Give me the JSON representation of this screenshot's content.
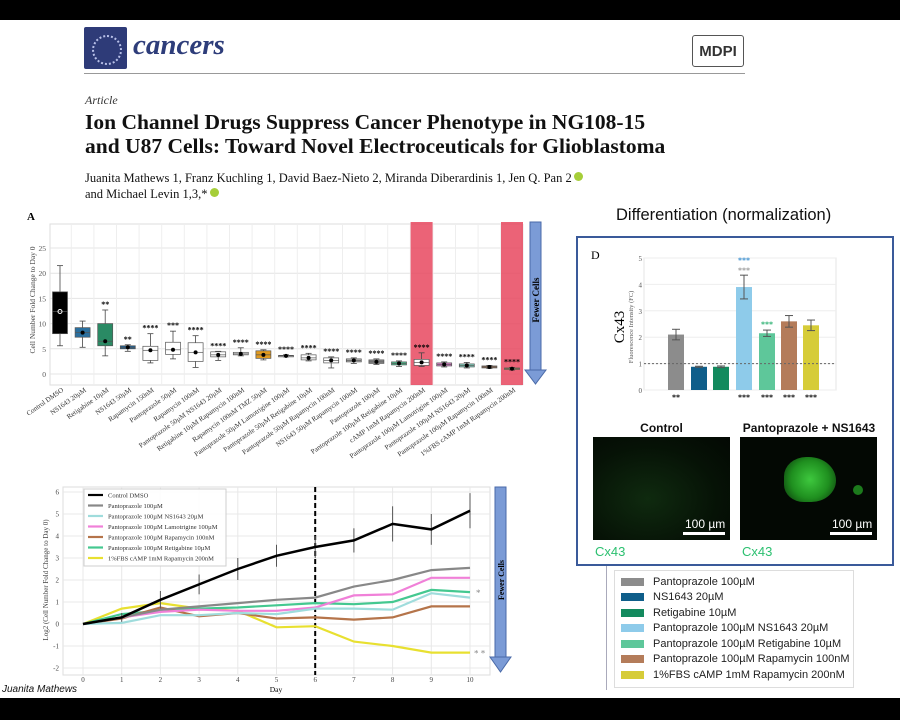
{
  "journal": {
    "name": "cancers",
    "publisher": "MDPI"
  },
  "article": {
    "type": "Article",
    "title_line1": "Ion Channel Drugs Suppress Cancer Phenotype in NG108-15",
    "title_line2": "and U87 Cells: Toward Novel Electroceuticals for Glioblastoma",
    "authors_line1": "Juanita Mathews 1, Franz Kuchling 1, David Baez-Nieto 2, Miranda Diberardinis 1, Jen Q. Pan 2",
    "authors_line2": "and Michael Levin 1,3,*"
  },
  "slide": {
    "differentiation_title": "Differentiation (normalization)",
    "credit": "Juanita Mathews"
  },
  "panel_d": {
    "label": "D",
    "image_left_title": "Control",
    "image_right_title": "Pantoprazole + NS1643",
    "scale_label": "100 µm",
    "stain_label": "Cx43"
  },
  "colors": {
    "highlight": "#e8485f",
    "arrow": "#7b9bd6",
    "panel_border": "#3a5a9a"
  },
  "chart_data": [
    {
      "type": "box",
      "panel": "A",
      "ylabel": "Cell Number Fold Change to Day 0",
      "ylim": [
        -2,
        28
      ],
      "yticks": [
        0,
        5,
        10,
        15,
        20,
        25
      ],
      "arrow_label": "Fewer Cells",
      "highlighted": [
        "cAMP 1mM Rapamycin 200nM",
        "1%FBS cAMP 1mM Rapamycin 200nM"
      ],
      "categories": [
        "Control DMSO",
        "NS1643 20µM",
        "Retigabine 10µM",
        "NS1643 50µM",
        "Rapamycin 150nM",
        "Pantoprazole 50µM",
        "Rapamycin 100nM",
        "Pantoprazole 50µM NS1643 20µM",
        "Retigabine 10µM Rapamycin 100nM",
        "Rapamycin 100nM TMZ 50µM",
        "Pantoprazole 50µM Lamotrigine 100µM",
        "Pantoprazole 50µM Retigabine 10µM",
        "Pantoprazole 50µM Rapamycin 100nM",
        "NS1643 50µM Rapamycin 100nM",
        "Pantoprazole 100µM",
        "Pantoprazole 100µM Retigabine 10µM",
        "cAMP 1mM Rapamycin 200nM",
        "Pantoprazole 100µM Lamotrigine 100µM",
        "Pantoprazole 100µM NS1643 20µM",
        "Pantoprazole 100µM Rapamycin 100nM",
        "1%FBS cAMP 1mM Rapamycin 200nM"
      ],
      "boxes": [
        {
          "q1": 8,
          "q3": 16.3,
          "median": 12.4,
          "lo": 5.6,
          "hi": 21.5,
          "color": "#000000",
          "sig": ""
        },
        {
          "q1": 7.3,
          "q3": 9.2,
          "median": 8.2,
          "lo": 5.3,
          "hi": 10.5,
          "color": "#2a6f9e",
          "sig": ""
        },
        {
          "q1": 5.6,
          "q3": 10,
          "median": 6.5,
          "lo": 3.6,
          "hi": 12.7,
          "color": "#2a8a64",
          "sig": "**"
        },
        {
          "q1": 5.0,
          "q3": 5.6,
          "median": 5.3,
          "lo": 4.5,
          "hi": 5.8,
          "color": "#1f5f8f",
          "sig": "**"
        },
        {
          "q1": 2.7,
          "q3": 5.5,
          "median": 4.7,
          "lo": 2.2,
          "hi": 8,
          "color": "#ffffff",
          "sig": "****"
        },
        {
          "q1": 3.9,
          "q3": 6.3,
          "median": 4.8,
          "lo": 3,
          "hi": 8.5,
          "color": "#ffffff",
          "sig": "***"
        },
        {
          "q1": 2.5,
          "q3": 6.2,
          "median": 4.3,
          "lo": 1.3,
          "hi": 7.6,
          "color": "#ffffff",
          "sig": "****"
        },
        {
          "q1": 3.4,
          "q3": 4.4,
          "median": 3.8,
          "lo": 2.7,
          "hi": 4.5,
          "color": "#ffffff",
          "sig": "****"
        },
        {
          "q1": 3.8,
          "q3": 4.3,
          "median": 4.0,
          "lo": 3.6,
          "hi": 5.2,
          "color": "#ffffff",
          "sig": "****"
        },
        {
          "q1": 3.1,
          "q3": 4.6,
          "median": 3.8,
          "lo": 2.8,
          "hi": 4.8,
          "color": "#e09a20",
          "sig": "****"
        },
        {
          "q1": 3.5,
          "q3": 3.7,
          "median": 3.6,
          "lo": 3.4,
          "hi": 3.8,
          "color": "#ffffff",
          "sig": "****"
        },
        {
          "q1": 2.8,
          "q3": 3.8,
          "median": 3.2,
          "lo": 2.6,
          "hi": 4.1,
          "color": "#ffffff",
          "sig": "****"
        },
        {
          "q1": 2.2,
          "q3": 3.2,
          "median": 2.7,
          "lo": 1.2,
          "hi": 3.4,
          "color": "#ffffff",
          "sig": "****"
        },
        {
          "q1": 2.4,
          "q3": 3.0,
          "median": 2.7,
          "lo": 2.1,
          "hi": 3.2,
          "color": "#bbbbbb",
          "sig": "****"
        },
        {
          "q1": 2.1,
          "q3": 2.8,
          "median": 2.4,
          "lo": 1.9,
          "hi": 3.0,
          "color": "#888888",
          "sig": "****"
        },
        {
          "q1": 1.8,
          "q3": 2.4,
          "median": 2.1,
          "lo": 1.5,
          "hi": 2.6,
          "color": "#4cc08f",
          "sig": "****"
        },
        {
          "q1": 1.7,
          "q3": 2.9,
          "median": 2.3,
          "lo": 1.5,
          "hi": 4.2,
          "color": "#ffffff",
          "sig": "****"
        },
        {
          "q1": 1.6,
          "q3": 2.2,
          "median": 1.9,
          "lo": 1.4,
          "hi": 2.4,
          "color": "#e080d0",
          "sig": "****"
        },
        {
          "q1": 1.4,
          "q3": 2.0,
          "median": 1.7,
          "lo": 1.2,
          "hi": 2.3,
          "color": "#7fd4c0",
          "sig": "****"
        },
        {
          "q1": 1.2,
          "q3": 1.6,
          "median": 1.4,
          "lo": 1.1,
          "hi": 1.7,
          "color": "#b07850",
          "sig": "****"
        },
        {
          "q1": 0.9,
          "q3": 1.2,
          "median": 1.05,
          "lo": 0.8,
          "hi": 1.3,
          "color": "#e0d030",
          "sig": "****"
        }
      ]
    },
    {
      "type": "line",
      "panel": "B",
      "xlabel": "Day",
      "ylabel": "Log2 (Cell Number Fold Change to Day 0)",
      "x": [
        0,
        1,
        2,
        3,
        4,
        5,
        6,
        7,
        8,
        9,
        10
      ],
      "ylim": [
        -2,
        6
      ],
      "yticks": [
        -2,
        -1,
        0,
        1,
        2,
        3,
        4,
        5,
        6
      ],
      "vline_day": 6,
      "arrow_label": "Fewer Cells",
      "legend": "top-left",
      "annotations": [
        {
          "text": "*",
          "series": "Pantoprazole 100µM Retigabine 10µM"
        },
        {
          "text": "* *",
          "series": "1%FBS cAMP 1mM Rapamycin 200nM"
        }
      ],
      "series": [
        {
          "name": "Control DMSO",
          "color": "#000000",
          "values": [
            0,
            0.3,
            1.1,
            1.8,
            2.5,
            3.1,
            3.5,
            3.8,
            4.55,
            4.3,
            5.15
          ],
          "err": [
            0,
            0.2,
            0.4,
            0.45,
            0.5,
            0.5,
            0.5,
            0.55,
            0.8,
            0.7,
            0.8
          ]
        },
        {
          "name": "Pantoprazole 100µM",
          "color": "#888888",
          "values": [
            0,
            0.3,
            0.65,
            0.8,
            0.95,
            1.1,
            1.2,
            1.7,
            2.0,
            2.45,
            2.55
          ]
        },
        {
          "name": "Pantoprazole 100µM NS1643 20µM",
          "color": "#9fdcdc",
          "values": [
            0,
            0.05,
            0.4,
            0.4,
            0.5,
            0.45,
            0.7,
            0.7,
            0.65,
            1.4,
            1.2
          ]
        },
        {
          "name": "Pantoprazole 100µM Lamotrigine 100µM",
          "color": "#f080d8",
          "values": [
            0,
            0.3,
            0.55,
            0.65,
            0.6,
            0.6,
            0.75,
            1.3,
            1.35,
            2.1,
            2.1
          ]
        },
        {
          "name": "Pantoprazole 100µM Rapamycin 100nM",
          "color": "#b5744a",
          "values": [
            0,
            0.25,
            0.75,
            0.35,
            0.5,
            0.25,
            0.3,
            0.2,
            0.3,
            0.8,
            0.8
          ]
        },
        {
          "name": "Pantoprazole 100µM Retigabine 10µM",
          "color": "#44c890",
          "values": [
            0,
            0.45,
            0.6,
            0.7,
            0.75,
            0.85,
            0.95,
            0.9,
            1.0,
            1.55,
            1.45
          ]
        },
        {
          "name": "1%FBS cAMP 1mM Rapamycin 200nM",
          "color": "#e8e030",
          "values": [
            0,
            0.7,
            0.95,
            0.7,
            0.6,
            -0.15,
            -0.1,
            -0.8,
            -1.0,
            -1.3,
            -1.3
          ]
        }
      ]
    },
    {
      "type": "bar",
      "panel": "D",
      "title": "Cx43",
      "ylabel": "Fluorescence Intensity (FC)",
      "ylim": [
        0,
        5
      ],
      "yticks": [
        0,
        1,
        2,
        3,
        4,
        5
      ],
      "reference_line": 1,
      "categories": [
        "Pantoprazole 100µM",
        "NS1643 20µM",
        "Retigabine 10µM",
        "Pantoprazole 100µM NS1643 20µM",
        "Pantoprazole 100µM Retigabine 10µM",
        "Pantoprazole 100µM Rapamycin 100nM",
        "1%FBS cAMP 1mM Rapamycin 200nM"
      ],
      "values": [
        2.1,
        0.88,
        0.88,
        3.9,
        2.15,
        2.6,
        2.45
      ],
      "errors": [
        0.2,
        0.02,
        0.03,
        0.45,
        0.12,
        0.22,
        0.2
      ],
      "colors": [
        "#8c8c8c",
        "#0f5e8a",
        "#138a5e",
        "#8ecbea",
        "#5ec79a",
        "#b47c5a",
        "#d6cc38"
      ],
      "sig_below": [
        "**",
        "",
        "",
        "***",
        "***",
        "***",
        "***"
      ],
      "sig_above": [
        "",
        "",
        "",
        "***",
        "***",
        "",
        ""
      ],
      "sig_above_colors": [
        "",
        "",
        "",
        "#3a8fd0",
        "#2ab070",
        "",
        ""
      ],
      "sig_above2": [
        "",
        "",
        "",
        "***",
        "",
        "",
        ""
      ],
      "legend": "below"
    }
  ]
}
